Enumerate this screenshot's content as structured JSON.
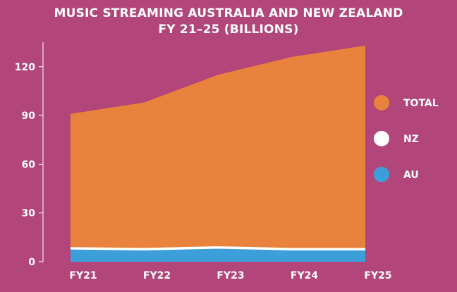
{
  "chart_data": {
    "type": "area",
    "title_line1": "MUSIC STREAMING AUSTRALIA AND NEW ZEALAND",
    "title_line2": "FY 21–25 (BILLIONS)",
    "categories": [
      "FY21",
      "FY22",
      "FY23",
      "FY24",
      "FY25"
    ],
    "ylim": [
      0,
      135
    ],
    "yticks": [
      0,
      30,
      60,
      90,
      120
    ],
    "stacked": false,
    "series": [
      {
        "name": "TOTAL",
        "color": "#e8823c",
        "values": [
          91,
          98,
          115,
          126,
          133
        ]
      },
      {
        "name": "NZ",
        "color": "#ffffff",
        "values": [
          9,
          8.5,
          9.5,
          8.5,
          8.5
        ]
      },
      {
        "name": "AU",
        "color": "#3d9fd9",
        "values": [
          7.5,
          7,
          8,
          7,
          7
        ]
      }
    ],
    "legend_position": "right",
    "grid": false
  }
}
